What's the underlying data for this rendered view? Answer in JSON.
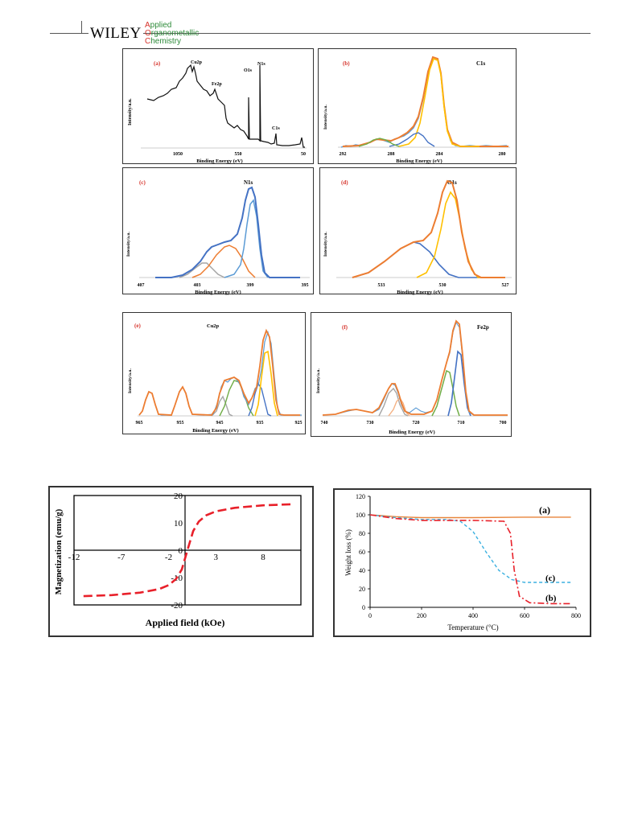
{
  "header": {
    "publisher": "WILEY",
    "journal_lines": [
      "Applied",
      "Organometallic",
      "Chemistry"
    ],
    "accent_color": "#d6332b",
    "journal_color": "#2e8b3a"
  },
  "xps": {
    "y_label": "Intensity/a.u.",
    "x_label": "Binding Energy (eV)",
    "panels": [
      {
        "tag": "(a)",
        "title": "",
        "ticks": [
          "1050",
          "550",
          "50"
        ],
        "peaks": [
          "Cu2p",
          "Fe2p",
          "O1s",
          "N1s",
          "C1s"
        ]
      },
      {
        "tag": "(b)",
        "title": "C1s",
        "ticks": [
          "292",
          "288",
          "284",
          "280"
        ]
      },
      {
        "tag": "(c)",
        "title": "N1s",
        "ticks": [
          "407",
          "403",
          "399",
          "395"
        ]
      },
      {
        "tag": "(d)",
        "title": "O1s",
        "ticks": [
          "533",
          "530",
          "527"
        ]
      },
      {
        "tag": "(e)",
        "title": "Cu2p",
        "ticks": [
          "965",
          "955",
          "945",
          "935",
          "925"
        ]
      },
      {
        "tag": "(f)",
        "title": "Fe2p",
        "ticks": [
          "740",
          "730",
          "720",
          "710",
          "700"
        ]
      }
    ]
  },
  "vsm": {
    "x_label": "Applied field (kOe)",
    "y_label": "Magnetization (emu/g)",
    "x_ticks": [
      "-12",
      "-7",
      "-2",
      "3",
      "8"
    ],
    "y_ticks": [
      "20",
      "10",
      "0",
      "-10",
      "-20"
    ],
    "line_color": "#e8202a"
  },
  "tga": {
    "x_label": "Temperature  (°C)",
    "y_label": "Weight  loss (%)",
    "x_ticks": [
      "0",
      "200",
      "400",
      "600",
      "800"
    ],
    "y_ticks": [
      "120",
      "100",
      "80",
      "60",
      "40",
      "20",
      "0"
    ],
    "curve_labels": [
      "(a)",
      "(c)",
      "(b)"
    ],
    "colors": {
      "a": "#e8843a",
      "b": "#e8202a",
      "c": "#3ab0e0"
    }
  },
  "chart_data": [
    {
      "type": "line",
      "title": "",
      "xlabel": "Applied field (kOe)",
      "ylabel": "Magnetization (emu/g)",
      "xlim": [
        -12,
        12
      ],
      "ylim": [
        -20,
        20
      ],
      "series": [
        {
          "name": "",
          "x": [
            -11,
            -8,
            -5,
            -3,
            -2,
            -1.2,
            -0.6,
            -0.3,
            0,
            0.3,
            0.6,
            1.2,
            2,
            3,
            5,
            8,
            11
          ],
          "y": [
            -16.8,
            -16.4,
            -15.5,
            -14.2,
            -12.8,
            -10.5,
            -7,
            -3.5,
            0,
            3.5,
            7,
            10.5,
            12.8,
            14.2,
            15.5,
            16.4,
            16.8
          ]
        }
      ]
    },
    {
      "type": "line",
      "title": "",
      "xlabel": "Temperature  (°C)",
      "ylabel": "Weight  loss (%)",
      "xlim": [
        0,
        800
      ],
      "ylim": [
        0,
        120
      ],
      "series": [
        {
          "name": "(a)",
          "x": [
            0,
            100,
            200,
            400,
            600,
            780
          ],
          "y": [
            100,
            98,
            97,
            97,
            97.5,
            97.5
          ]
        },
        {
          "name": "(b)",
          "x": [
            0,
            100,
            200,
            400,
            520,
            545,
            560,
            580,
            620,
            700,
            780
          ],
          "y": [
            100,
            96,
            94,
            94,
            93,
            80,
            40,
            12,
            5,
            4,
            4
          ]
        },
        {
          "name": "(c)",
          "x": [
            0,
            100,
            200,
            300,
            350,
            400,
            450,
            500,
            550,
            600,
            700,
            780
          ],
          "y": [
            100,
            97,
            95,
            95,
            93,
            82,
            60,
            40,
            30,
            27,
            27,
            27
          ]
        }
      ]
    }
  ]
}
